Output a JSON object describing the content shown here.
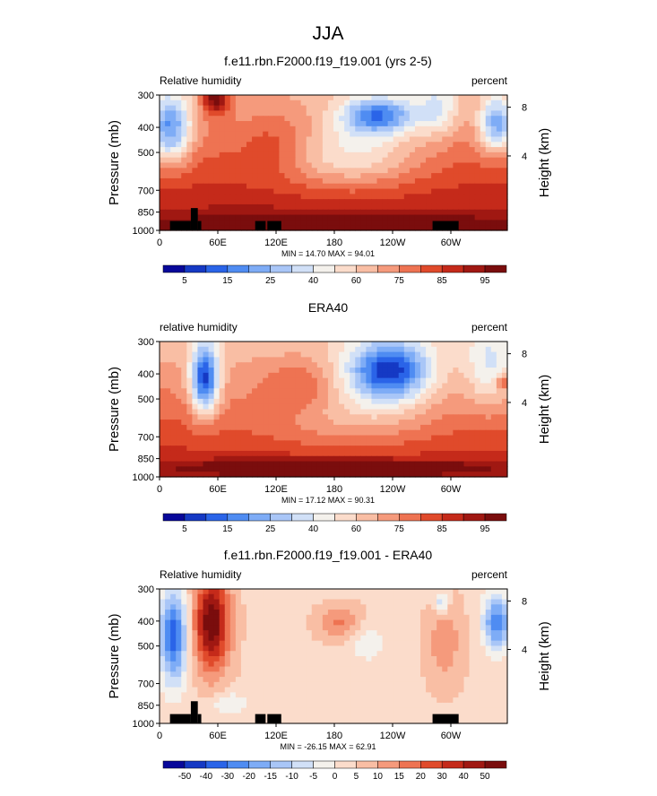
{
  "figure": {
    "title": "JJA"
  },
  "chart_data": [
    {
      "type": "heatmap",
      "title": "f.e11.rbn.F2000.f19_f19.001 (yrs 2-5)",
      "left_label": "Relative humidity",
      "right_label": "percent",
      "ylabel": "Pressure (mb)",
      "ylabel_right": "Height (km)",
      "y_ticks": [
        "300",
        "400",
        "500",
        "700",
        "850",
        "1000"
      ],
      "y_right_ticks": [
        "8",
        "4"
      ],
      "x_ticks": [
        "0",
        "60E",
        "120E",
        "180",
        "120W",
        "60W"
      ],
      "stats": "MIN =  14.70  MAX =  94.01",
      "colorbar_labels": [
        "5",
        "15",
        "25",
        "40",
        "60",
        "75",
        "85",
        "95"
      ],
      "colorbar_levels": [
        "5",
        "10",
        "15",
        "20",
        "25",
        "30",
        "40",
        "50",
        "60",
        "70",
        "75",
        "80",
        "85",
        "90",
        "95"
      ],
      "colormap": [
        "#08089a",
        "#1539c4",
        "#2a64e8",
        "#4f8cf2",
        "#7eacf6",
        "#a9c6f7",
        "#d1e0f7",
        "#f4f1ec",
        "#fbdccb",
        "#f9bea4",
        "#f59a7c",
        "#ee7352",
        "#e04a2b",
        "#c52a1a",
        "#a01812",
        "#7a0d0d"
      ],
      "topography": true,
      "field_max": 94.01,
      "field_min": 14.7
    },
    {
      "type": "heatmap",
      "title": "ERA40",
      "left_label": "relative humidity",
      "right_label": "percent",
      "ylabel": "Pressure (mb)",
      "ylabel_right": "Height (km)",
      "y_ticks": [
        "300",
        "400",
        "500",
        "700",
        "850",
        "1000"
      ],
      "y_right_ticks": [
        "8",
        "4"
      ],
      "x_ticks": [
        "0",
        "60E",
        "120E",
        "180",
        "120W",
        "60W"
      ],
      "stats": "MIN =  17.12  MAX =  90.31",
      "colorbar_labels": [
        "5",
        "15",
        "25",
        "40",
        "60",
        "75",
        "85",
        "95"
      ],
      "colorbar_levels": [
        "5",
        "10",
        "15",
        "20",
        "25",
        "30",
        "40",
        "50",
        "60",
        "70",
        "75",
        "80",
        "85",
        "90",
        "95"
      ],
      "colormap": [
        "#08089a",
        "#1539c4",
        "#2a64e8",
        "#4f8cf2",
        "#7eacf6",
        "#a9c6f7",
        "#d1e0f7",
        "#f4f1ec",
        "#fbdccb",
        "#f9bea4",
        "#f59a7c",
        "#ee7352",
        "#e04a2b",
        "#c52a1a",
        "#a01812",
        "#7a0d0d"
      ],
      "topography": false,
      "field_max": 90.31,
      "field_min": 17.12
    },
    {
      "type": "heatmap",
      "title": "f.e11.rbn.F2000.f19_f19.001 - ERA40",
      "left_label": "Relative humidity",
      "right_label": "percent",
      "ylabel": "Pressure (mb)",
      "ylabel_right": "Height (km)",
      "y_ticks": [
        "300",
        "400",
        "500",
        "700",
        "850",
        "1000"
      ],
      "y_right_ticks": [
        "8",
        "4"
      ],
      "x_ticks": [
        "0",
        "60E",
        "120E",
        "180",
        "120W",
        "60W"
      ],
      "stats": "MIN = -26.15  MAX =  62.91",
      "colorbar_labels": [
        "-50",
        "-40",
        "-30",
        "-20",
        "-15",
        "-10",
        "-5",
        "0",
        "5",
        "10",
        "15",
        "20",
        "30",
        "40",
        "50"
      ],
      "colorbar_levels": [
        "-50",
        "-40",
        "-30",
        "-20",
        "-15",
        "-10",
        "-5",
        "0",
        "5",
        "10",
        "15",
        "20",
        "30",
        "40",
        "50"
      ],
      "colormap": [
        "#08089a",
        "#1539c4",
        "#2a64e8",
        "#4f8cf2",
        "#7eacf6",
        "#a9c6f7",
        "#d1e0f7",
        "#f4f1ec",
        "#fbdccb",
        "#f9bea4",
        "#f59a7c",
        "#ee7352",
        "#e04a2b",
        "#c52a1a",
        "#a01812",
        "#7a0d0d"
      ],
      "topography": true,
      "field_max": 62.91,
      "field_min": -26.15
    }
  ]
}
